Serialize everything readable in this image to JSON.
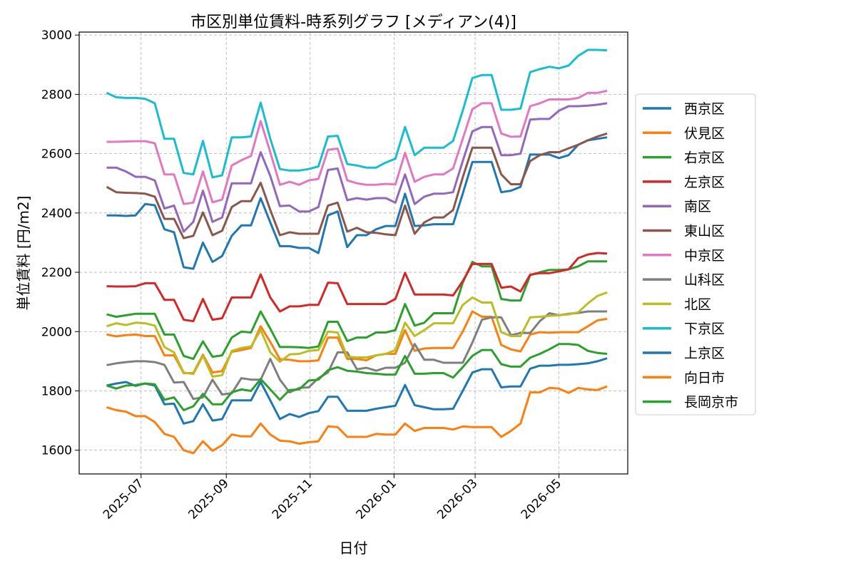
{
  "chart_data": {
    "type": "line",
    "title": "市区別単位賃料-時系列グラフ [メディアン(4)]",
    "xlabel": "日付",
    "ylabel": "単位賃料 [円/m2]",
    "ylim": [
      1520,
      3010
    ],
    "xlim": [
      "2025-05-17",
      "2026-06-20"
    ],
    "yticks": [
      1600,
      1800,
      2000,
      2200,
      2400,
      2600,
      2800,
      3000
    ],
    "xticks": [
      "2025-07-01",
      "2025-09-01",
      "2025-11-01",
      "2026-01-01",
      "2026-03-01",
      "2026-05-01"
    ],
    "xtick_labels": [
      "2025-07",
      "2025-09",
      "2025-11",
      "2026-01",
      "2026-03",
      "2026-05"
    ],
    "grid": true,
    "legend_position": "right",
    "start_date": "2025-06-06",
    "series": [
      {
        "name": "西京区",
        "color": "#1f77b4",
        "values": [
          2392,
          2392,
          2390,
          2392,
          2430,
          2426,
          2345,
          2335,
          2217,
          2212,
          2300,
          2235,
          2255,
          2323,
          2358,
          2358,
          2450,
          2368,
          2288,
          2288,
          2282,
          2282,
          2265,
          2392,
          2405,
          2285,
          2325,
          2325,
          2345,
          2356,
          2356,
          2465,
          2356,
          2358,
          2362,
          2362,
          2362,
          2465,
          2572,
          2572,
          2572,
          2470,
          2475,
          2488,
          2597,
          2597,
          2597,
          2585,
          2595,
          2630,
          2645,
          2650,
          2655
        ]
      },
      {
        "name": "伏見区",
        "color": "#ff7f0e",
        "values": [
          1990,
          1984,
          1988,
          1990,
          1985,
          1985,
          1920,
          1920,
          1860,
          1860,
          1922,
          1862,
          1867,
          1932,
          1938,
          1945,
          2018,
          1965,
          1907,
          1905,
          1900,
          1900,
          1903,
          1980,
          1980,
          1908,
          1908,
          1903,
          1920,
          1925,
          1925,
          2005,
          1935,
          1943,
          1945,
          1945,
          1945,
          2000,
          2068,
          2050,
          2050,
          1955,
          1940,
          1933,
          1990,
          1998,
          1996,
          1998,
          1998,
          1998,
          2018,
          2038,
          2043
        ]
      },
      {
        "name": "右京区",
        "color": "#2ca02c",
        "values": [
          2058,
          2050,
          2055,
          2060,
          2060,
          2060,
          1990,
          1990,
          1918,
          1908,
          1967,
          1915,
          1920,
          1980,
          2000,
          1997,
          2068,
          2010,
          1948,
          1948,
          1947,
          1945,
          1950,
          2033,
          2033,
          1968,
          1980,
          1980,
          1997,
          1997,
          2005,
          2093,
          2020,
          2030,
          2062,
          2062,
          2062,
          2165,
          2235,
          2220,
          2220,
          2110,
          2105,
          2105,
          2190,
          2200,
          2208,
          2208,
          2210,
          2220,
          2237,
          2237,
          2237
        ]
      },
      {
        "name": "左京区",
        "color": "#d62728",
        "values": [
          2153,
          2152,
          2152,
          2153,
          2163,
          2163,
          2107,
          2107,
          2040,
          2035,
          2110,
          2040,
          2045,
          2115,
          2115,
          2115,
          2193,
          2115,
          2068,
          2085,
          2085,
          2090,
          2090,
          2165,
          2163,
          2093,
          2093,
          2093,
          2093,
          2093,
          2110,
          2198,
          2125,
          2125,
          2125,
          2125,
          2122,
          2170,
          2228,
          2228,
          2228,
          2148,
          2152,
          2135,
          2192,
          2197,
          2197,
          2203,
          2210,
          2248,
          2260,
          2265,
          2263
        ]
      },
      {
        "name": "南区",
        "color": "#9467bd",
        "values": [
          2553,
          2553,
          2540,
          2522,
          2522,
          2510,
          2415,
          2425,
          2337,
          2370,
          2475,
          2370,
          2385,
          2500,
          2500,
          2500,
          2605,
          2525,
          2423,
          2425,
          2405,
          2405,
          2420,
          2545,
          2550,
          2443,
          2450,
          2445,
          2450,
          2450,
          2435,
          2530,
          2430,
          2455,
          2465,
          2465,
          2470,
          2575,
          2675,
          2690,
          2690,
          2595,
          2595,
          2600,
          2715,
          2717,
          2717,
          2745,
          2760,
          2760,
          2762,
          2765,
          2770
        ]
      },
      {
        "name": "東山区",
        "color": "#8c564b",
        "values": [
          2488,
          2470,
          2468,
          2467,
          2465,
          2455,
          2380,
          2380,
          2315,
          2323,
          2402,
          2325,
          2340,
          2420,
          2440,
          2440,
          2502,
          2410,
          2325,
          2335,
          2330,
          2330,
          2330,
          2425,
          2435,
          2337,
          2350,
          2335,
          2333,
          2328,
          2325,
          2425,
          2330,
          2368,
          2385,
          2385,
          2410,
          2520,
          2620,
          2620,
          2620,
          2530,
          2497,
          2497,
          2575,
          2595,
          2605,
          2605,
          2618,
          2630,
          2645,
          2658,
          2668
        ]
      },
      {
        "name": "中京区",
        "color": "#e377c2",
        "values": [
          2640,
          2640,
          2641,
          2642,
          2642,
          2635,
          2530,
          2530,
          2430,
          2435,
          2540,
          2436,
          2445,
          2560,
          2578,
          2592,
          2710,
          2605,
          2495,
          2505,
          2495,
          2510,
          2515,
          2613,
          2617,
          2510,
          2500,
          2495,
          2495,
          2498,
          2496,
          2603,
          2505,
          2522,
          2530,
          2530,
          2550,
          2650,
          2750,
          2770,
          2770,
          2668,
          2657,
          2658,
          2760,
          2770,
          2783,
          2783,
          2783,
          2788,
          2805,
          2805,
          2812
        ]
      },
      {
        "name": "山科区",
        "color": "#7f7f7f",
        "values": [
          1887,
          1893,
          1897,
          1900,
          1900,
          1897,
          1888,
          1828,
          1830,
          1773,
          1778,
          1838,
          1788,
          1792,
          1843,
          1838,
          1838,
          1908,
          1838,
          1795,
          1810,
          1812,
          1843,
          1862,
          1930,
          1930,
          1873,
          1878,
          1868,
          1878,
          1878,
          1895,
          1958,
          1905,
          1905,
          1895,
          1895,
          1895,
          1963,
          2040,
          2048,
          2048,
          1988,
          1995,
          1995,
          2035,
          2062,
          2055,
          2060,
          2063,
          2068,
          2068,
          2068
        ]
      },
      {
        "name": "北区",
        "color": "#bcbd22",
        "values": [
          2018,
          2028,
          2022,
          2030,
          2028,
          2020,
          1948,
          1930,
          1862,
          1857,
          1918,
          1848,
          1853,
          1935,
          1945,
          1950,
          2005,
          1930,
          1898,
          1923,
          1925,
          1935,
          1938,
          2000,
          1997,
          1915,
          1913,
          1913,
          1920,
          1925,
          1938,
          2030,
          1985,
          2005,
          2028,
          2028,
          2028,
          2090,
          2115,
          2098,
          2098,
          1998,
          1985,
          1985,
          2048,
          2050,
          2053,
          2055,
          2058,
          2065,
          2095,
          2120,
          2132
        ]
      },
      {
        "name": "下京区",
        "color": "#17becf",
        "values": [
          2805,
          2790,
          2788,
          2788,
          2785,
          2770,
          2650,
          2650,
          2535,
          2530,
          2643,
          2520,
          2527,
          2655,
          2655,
          2658,
          2772,
          2650,
          2548,
          2543,
          2543,
          2548,
          2557,
          2658,
          2660,
          2565,
          2560,
          2553,
          2553,
          2570,
          2583,
          2690,
          2595,
          2620,
          2620,
          2620,
          2643,
          2745,
          2855,
          2865,
          2865,
          2748,
          2748,
          2752,
          2875,
          2885,
          2893,
          2888,
          2897,
          2930,
          2950,
          2950,
          2948
        ]
      },
      {
        "name": "上京区",
        "color": "#1f77b4",
        "values": [
          1818,
          1825,
          1830,
          1817,
          1825,
          1818,
          1755,
          1757,
          1690,
          1698,
          1755,
          1700,
          1705,
          1768,
          1768,
          1768,
          1830,
          1768,
          1705,
          1722,
          1712,
          1725,
          1732,
          1780,
          1780,
          1733,
          1733,
          1733,
          1740,
          1745,
          1750,
          1820,
          1752,
          1745,
          1738,
          1738,
          1740,
          1800,
          1862,
          1873,
          1873,
          1812,
          1815,
          1815,
          1875,
          1885,
          1885,
          1888,
          1888,
          1890,
          1893,
          1900,
          1910
        ]
      },
      {
        "name": "向日市",
        "color": "#ff7f0e",
        "values": [
          1745,
          1735,
          1730,
          1715,
          1715,
          1695,
          1655,
          1645,
          1600,
          1590,
          1630,
          1598,
          1617,
          1653,
          1647,
          1647,
          1690,
          1653,
          1632,
          1630,
          1622,
          1627,
          1630,
          1680,
          1678,
          1645,
          1645,
          1645,
          1655,
          1653,
          1653,
          1690,
          1665,
          1675,
          1675,
          1675,
          1670,
          1680,
          1678,
          1678,
          1678,
          1645,
          1665,
          1690,
          1795,
          1795,
          1810,
          1808,
          1793,
          1810,
          1805,
          1803,
          1815
        ]
      },
      {
        "name": "長岡京市",
        "color": "#2ca02c",
        "values": [
          1818,
          1808,
          1818,
          1820,
          1825,
          1822,
          1770,
          1778,
          1735,
          1748,
          1790,
          1755,
          1755,
          1795,
          1805,
          1800,
          1840,
          1805,
          1770,
          1803,
          1805,
          1835,
          1838,
          1870,
          1880,
          1868,
          1865,
          1860,
          1858,
          1855,
          1855,
          1918,
          1858,
          1858,
          1860,
          1860,
          1845,
          1880,
          1918,
          1938,
          1938,
          1890,
          1882,
          1882,
          1912,
          1925,
          1940,
          1958,
          1958,
          1955,
          1935,
          1928,
          1925
        ]
      }
    ]
  }
}
